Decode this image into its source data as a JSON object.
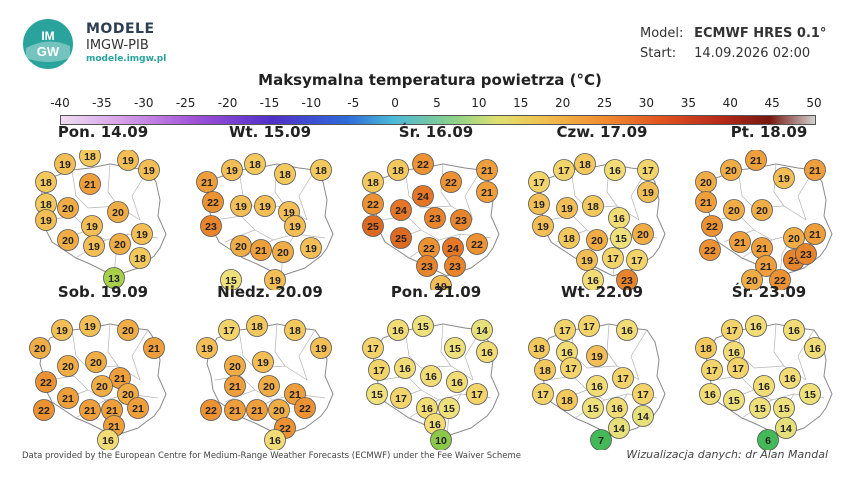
{
  "logo": {
    "title": "MODELE",
    "subtitle": "IMGW-PIB",
    "url": "modele.imgw.pl",
    "mark_text": "IM GW"
  },
  "model_info": {
    "model_label": "Model:",
    "model_value": "ECMWF HRES 0.1°",
    "start_label": "Start:",
    "start_value": "14.09.2026 02:00"
  },
  "title": "Maksymalna temperatura powietrza (°C)",
  "scale": {
    "ticks": [
      "-40",
      "-35",
      "-30",
      "-25",
      "-20",
      "-15",
      "-10",
      "-5",
      "0",
      "5",
      "10",
      "15",
      "20",
      "25",
      "30",
      "35",
      "40",
      "45",
      "50"
    ]
  },
  "footer": {
    "source": "Data provided by the European Centre for Medium-Range Weather Forecasts (ECMWF) under the Fee Waiver Scheme",
    "credit": "Wizualizacja danych: dr Alan Mandal"
  },
  "colors": {
    "6": "#43b957",
    "7": "#43b957",
    "10": "#8cc94a",
    "13": "#a8cf4a",
    "14": "#e6e07a",
    "15": "#eee07a",
    "16": "#f2dc75",
    "17": "#f3d46a",
    "18": "#f3c95e",
    "19": "#f2be55",
    "20": "#f0ad45",
    "21": "#ee9e3a",
    "22": "#ec9232",
    "23": "#e8852c",
    "24": "#e47626",
    "25": "#de6a22"
  },
  "panels": [
    {
      "label": "Pon. 14.09",
      "values": [
        19,
        18,
        19,
        18,
        21,
        19,
        18,
        20,
        19,
        19,
        20,
        19,
        20,
        19,
        20,
        18,
        13
      ]
    },
    {
      "label": "Wt. 15.09",
      "values": [
        19,
        21,
        18,
        18,
        18,
        22,
        19,
        19,
        19,
        23,
        20,
        19,
        21,
        20,
        19,
        19,
        15
      ]
    },
    {
      "label": "Śr. 16.09",
      "values": [
        22,
        18,
        22,
        21,
        18,
        24,
        21,
        22,
        24,
        23,
        25,
        23,
        25,
        22,
        24,
        22,
        23,
        23,
        19
      ]
    },
    {
      "label": "Czw. 17.09",
      "values": [
        18,
        17,
        17,
        16,
        17,
        19,
        19,
        18,
        16,
        19,
        19,
        18,
        20,
        15,
        20,
        19,
        17,
        17,
        16,
        23
      ]
    },
    {
      "label": "Pt. 18.09",
      "values": [
        21,
        20,
        20,
        19,
        21,
        21,
        20,
        20,
        22,
        21,
        21,
        20,
        21,
        22,
        21,
        23,
        22,
        23,
        20
      ]
    },
    {
      "label": "Sob. 19.09",
      "values": [
        19,
        19,
        20,
        20,
        21,
        20,
        20,
        21,
        22,
        20,
        20,
        21,
        21,
        21,
        21,
        22,
        21,
        16
      ]
    },
    {
      "label": "Niedz. 20.09",
      "values": [
        17,
        18,
        18,
        19,
        19,
        20,
        19,
        21,
        20,
        21,
        21,
        20,
        22,
        21,
        22,
        22,
        16
      ]
    },
    {
      "label": "Pon. 21.09",
      "values": [
        16,
        15,
        14,
        17,
        15,
        16,
        17,
        16,
        16,
        16,
        15,
        17,
        16,
        15,
        17,
        16,
        10
      ]
    },
    {
      "label": "Wt. 22.09",
      "values": [
        17,
        17,
        16,
        18,
        16,
        19,
        18,
        17,
        17,
        16,
        17,
        18,
        15,
        16,
        17,
        14,
        14,
        7
      ]
    },
    {
      "label": "Śr. 23.09",
      "values": [
        17,
        16,
        16,
        18,
        16,
        16,
        17,
        17,
        16,
        16,
        16,
        15,
        15,
        15,
        15,
        14,
        6
      ]
    }
  ]
}
